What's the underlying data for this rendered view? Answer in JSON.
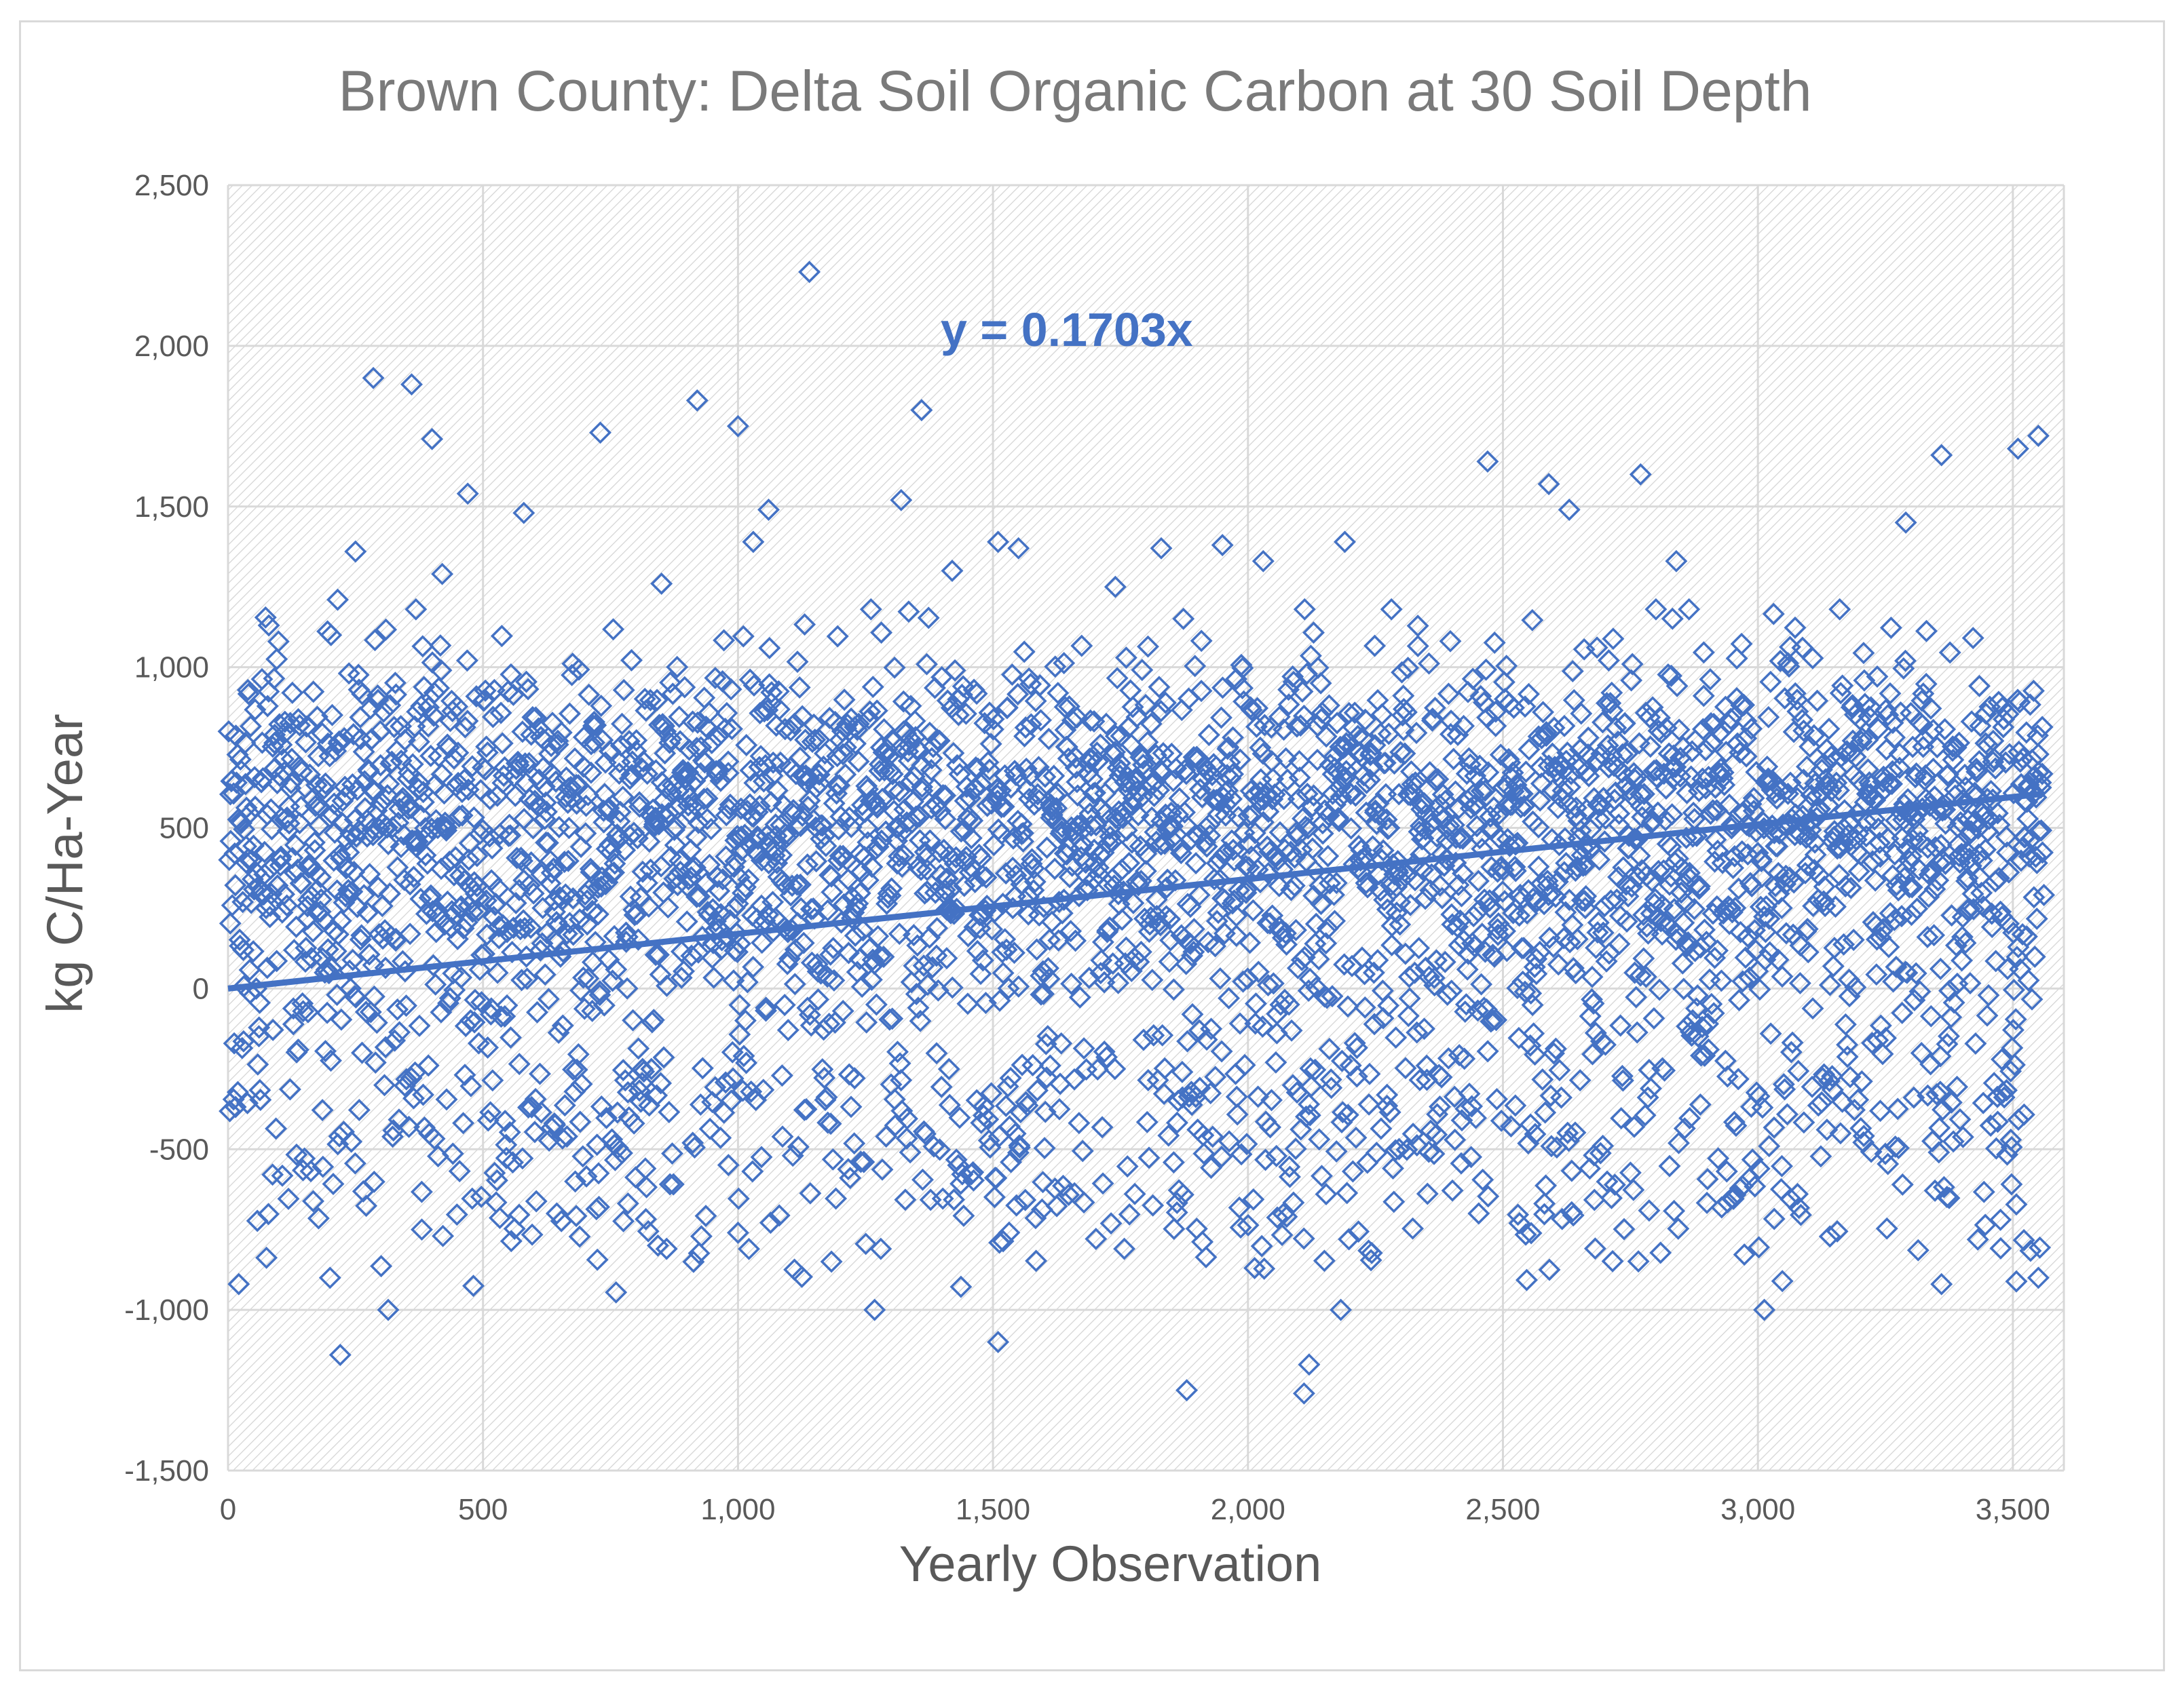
{
  "chart_data": {
    "type": "scatter",
    "title": "Brown County: Delta Soil Organic Carbon at 30 Soil Depth",
    "xlabel": "Yearly Observation",
    "ylabel": "kg C/Ha-Year",
    "xlim": [
      0,
      3600
    ],
    "ylim": [
      -1500,
      2500
    ],
    "x_ticks": [
      0,
      500,
      1000,
      1500,
      2000,
      2500,
      3000,
      3500
    ],
    "x_tick_labels": [
      "0",
      "500",
      "1,000",
      "1,500",
      "2,000",
      "2,500",
      "3,000",
      "3,500"
    ],
    "y_ticks": [
      -1500,
      -1000,
      -500,
      0,
      500,
      1000,
      1500,
      2000,
      2500
    ],
    "y_tick_labels": [
      "-1,500",
      "-1,000",
      "-500",
      "0",
      "500",
      "1,000",
      "1,500",
      "2,000",
      "2,500"
    ],
    "grid": true,
    "marker": "diamond-open",
    "series_color": "#4472c4",
    "trendline": {
      "equation": "y = 0.1703x",
      "slope": 0.1703,
      "intercept": 0,
      "x_range": [
        0,
        3560
      ]
    },
    "n_points_approx": 3560,
    "highlighted_points": [
      {
        "x": 30,
        "y": 120
      },
      {
        "x": 80,
        "y": 1130
      },
      {
        "x": 200,
        "y": -900
      },
      {
        "x": 215,
        "y": 1210
      },
      {
        "x": 220,
        "y": -1140
      },
      {
        "x": 250,
        "y": 1360
      },
      {
        "x": 285,
        "y": 1900
      },
      {
        "x": 360,
        "y": 1880
      },
      {
        "x": 380,
        "y": -750
      },
      {
        "x": 400,
        "y": 1710
      },
      {
        "x": 420,
        "y": 1290
      },
      {
        "x": 470,
        "y": 1540
      },
      {
        "x": 580,
        "y": 1480
      },
      {
        "x": 640,
        "y": -420
      },
      {
        "x": 730,
        "y": 1730
      },
      {
        "x": 850,
        "y": 1260
      },
      {
        "x": 860,
        "y": -810
      },
      {
        "x": 920,
        "y": 1830
      },
      {
        "x": 1000,
        "y": 1750
      },
      {
        "x": 1000,
        "y": -760
      },
      {
        "x": 1030,
        "y": 1390
      },
      {
        "x": 1060,
        "y": 1490
      },
      {
        "x": 1140,
        "y": 2230
      },
      {
        "x": 1280,
        "y": -810
      },
      {
        "x": 1320,
        "y": 1520
      },
      {
        "x": 1360,
        "y": 1800
      },
      {
        "x": 1420,
        "y": 1300
      },
      {
        "x": 1510,
        "y": 1390
      },
      {
        "x": 1510,
        "y": -1100
      },
      {
        "x": 1550,
        "y": 1370
      },
      {
        "x": 1740,
        "y": 1250
      },
      {
        "x": 1830,
        "y": 1370
      },
      {
        "x": 1880,
        "y": -1250
      },
      {
        "x": 1950,
        "y": 1380
      },
      {
        "x": 2030,
        "y": 1330
      },
      {
        "x": 2110,
        "y": -1260
      },
      {
        "x": 2120,
        "y": -1170
      },
      {
        "x": 2190,
        "y": 1390
      },
      {
        "x": 2470,
        "y": 1640
      },
      {
        "x": 2590,
        "y": 1570
      },
      {
        "x": 2630,
        "y": 1490
      },
      {
        "x": 2770,
        "y": 1600
      },
      {
        "x": 2840,
        "y": 1330
      },
      {
        "x": 3290,
        "y": 1450
      },
      {
        "x": 3360,
        "y": 1660
      },
      {
        "x": 3360,
        "y": -920
      },
      {
        "x": 3510,
        "y": 1680
      },
      {
        "x": 3550,
        "y": 1720
      },
      {
        "x": 3550,
        "y": -900
      }
    ]
  }
}
